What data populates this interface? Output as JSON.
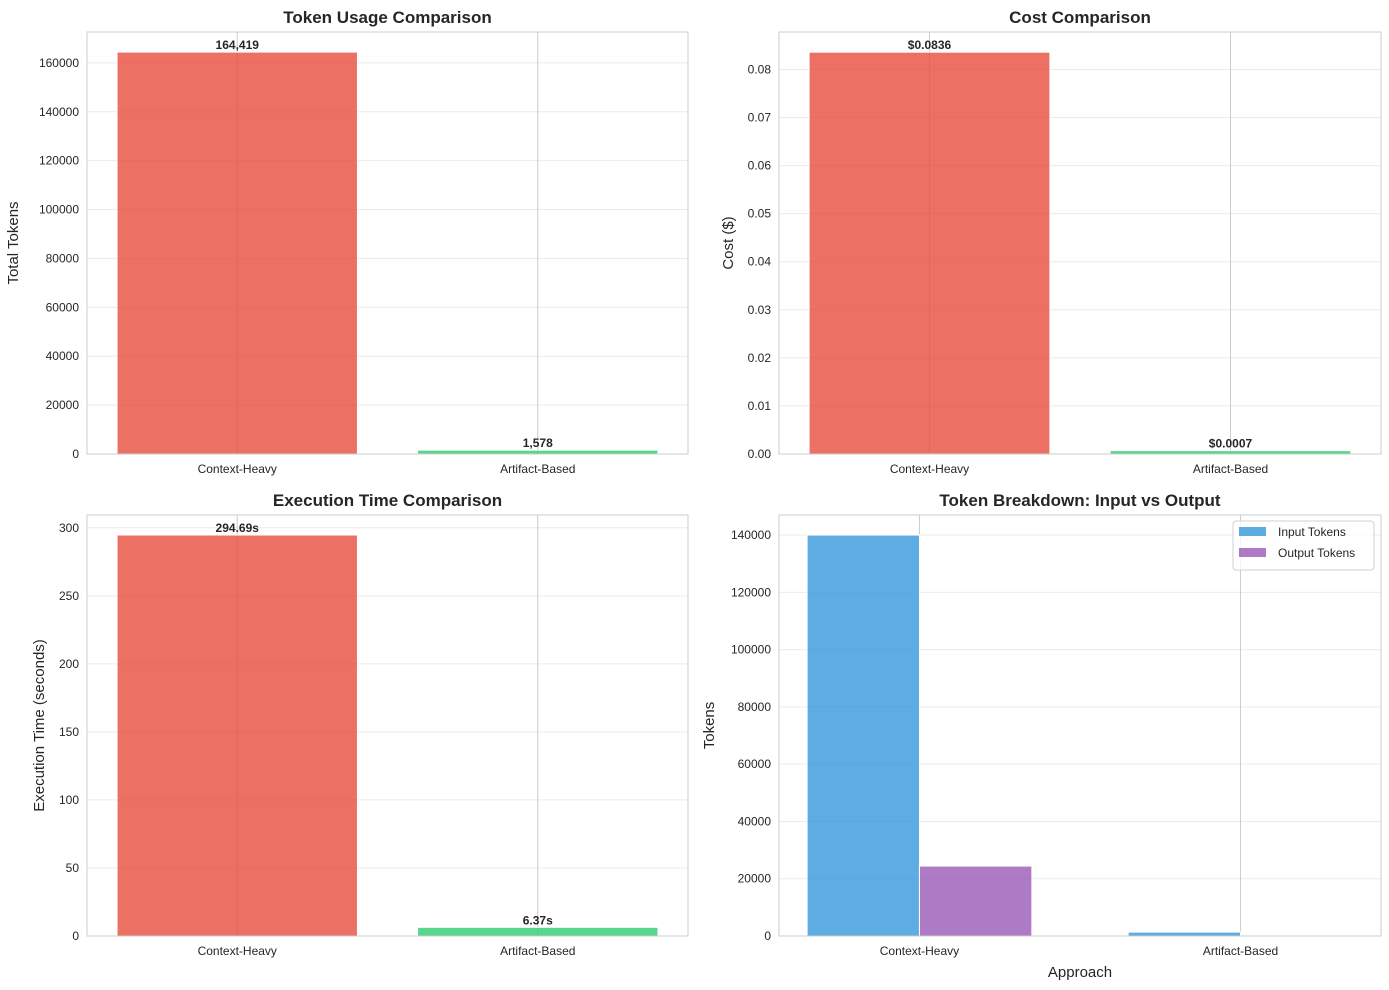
{
  "chart_data": [
    {
      "type": "bar",
      "title": "Token Usage Comparison",
      "xlabel": "",
      "ylabel": "Total Tokens",
      "categories": [
        "Context-Heavy",
        "Artifact-Based"
      ],
      "values": [
        164419,
        1578
      ],
      "data_labels": [
        "164,419",
        "1,578"
      ],
      "colors": [
        "#e74c3c",
        "#2ecc71"
      ],
      "ylim": [
        0,
        172640
      ],
      "yticks": [
        0,
        20000,
        40000,
        60000,
        80000,
        100000,
        120000,
        140000,
        160000
      ],
      "grid": true
    },
    {
      "type": "bar",
      "title": "Cost Comparison",
      "xlabel": "",
      "ylabel": "Cost ($)",
      "categories": [
        "Context-Heavy",
        "Artifact-Based"
      ],
      "values": [
        0.0836,
        0.0007
      ],
      "data_labels": [
        "$0.0836",
        "$0.0007"
      ],
      "colors": [
        "#e74c3c",
        "#2ecc71"
      ],
      "ylim": [
        0,
        0.0878
      ],
      "yticks": [
        "0.00",
        "0.01",
        "0.02",
        "0.03",
        "0.04",
        "0.05",
        "0.06",
        "0.07",
        "0.08"
      ],
      "grid": true
    },
    {
      "type": "bar",
      "title": "Execution Time Comparison",
      "xlabel": "",
      "ylabel": "Execution Time (seconds)",
      "categories": [
        "Context-Heavy",
        "Artifact-Based"
      ],
      "values": [
        294.69,
        6.37
      ],
      "data_labels": [
        "294.69s",
        "6.37s"
      ],
      "colors": [
        "#e74c3c",
        "#2ecc71"
      ],
      "ylim": [
        0,
        309.4
      ],
      "yticks": [
        0,
        50,
        100,
        150,
        200,
        250,
        300
      ],
      "grid": true
    },
    {
      "type": "bar",
      "title": "Token Breakdown: Input vs Output",
      "xlabel": "Approach",
      "ylabel": "Tokens",
      "categories": [
        "Context-Heavy",
        "Artifact-Based"
      ],
      "series": [
        {
          "name": "Input Tokens",
          "values": [
            140000,
            1350
          ],
          "color": "#3498db"
        },
        {
          "name": "Output Tokens",
          "values": [
            24419,
            228
          ],
          "color": "#9b59b6"
        }
      ],
      "ylim": [
        0,
        147000
      ],
      "yticks": [
        0,
        20000,
        40000,
        60000,
        80000,
        100000,
        120000,
        140000
      ],
      "legend": "top-right",
      "grid": true
    }
  ]
}
